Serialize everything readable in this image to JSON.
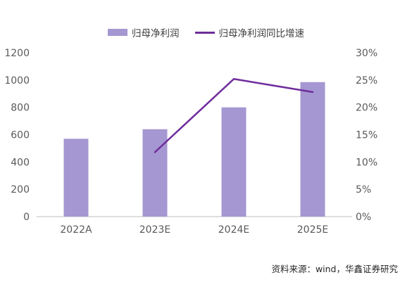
{
  "chart_data": {
    "type": "bar",
    "categories": [
      "2022A",
      "2023E",
      "2024E",
      "2025E"
    ],
    "series": [
      {
        "name": "归母净利润",
        "type": "bar",
        "axis": "left",
        "values": [
          570,
          640,
          800,
          985
        ]
      },
      {
        "name": "归母净利润同比增速",
        "type": "line",
        "axis": "right",
        "values": [
          null,
          0.118,
          0.252,
          0.228
        ]
      }
    ],
    "left_axis": {
      "ylim": [
        0,
        1200
      ],
      "ticks": [
        0,
        200,
        400,
        600,
        800,
        1000,
        1200
      ],
      "tick_labels": [
        "0",
        "200",
        "400",
        "600",
        "800",
        "1000",
        "1200"
      ]
    },
    "right_axis": {
      "ylim": [
        0,
        0.3
      ],
      "ticks": [
        0,
        0.05,
        0.1,
        0.15,
        0.2,
        0.25,
        0.3
      ],
      "tick_labels": [
        "0%",
        "5%",
        "10%",
        "15%",
        "20%",
        "25%",
        "30%"
      ]
    },
    "grid": false,
    "legend_position": "top-center"
  },
  "legend": {
    "bar_label": "归母净利润",
    "line_label": "归母净利润同比增速"
  },
  "source_text": "资料来源：wind，华鑫证券研究",
  "colors": {
    "bar": "#a597d1",
    "line": "#6f2c9c",
    "axis": "#bfbfbf",
    "text": "#595959"
  }
}
